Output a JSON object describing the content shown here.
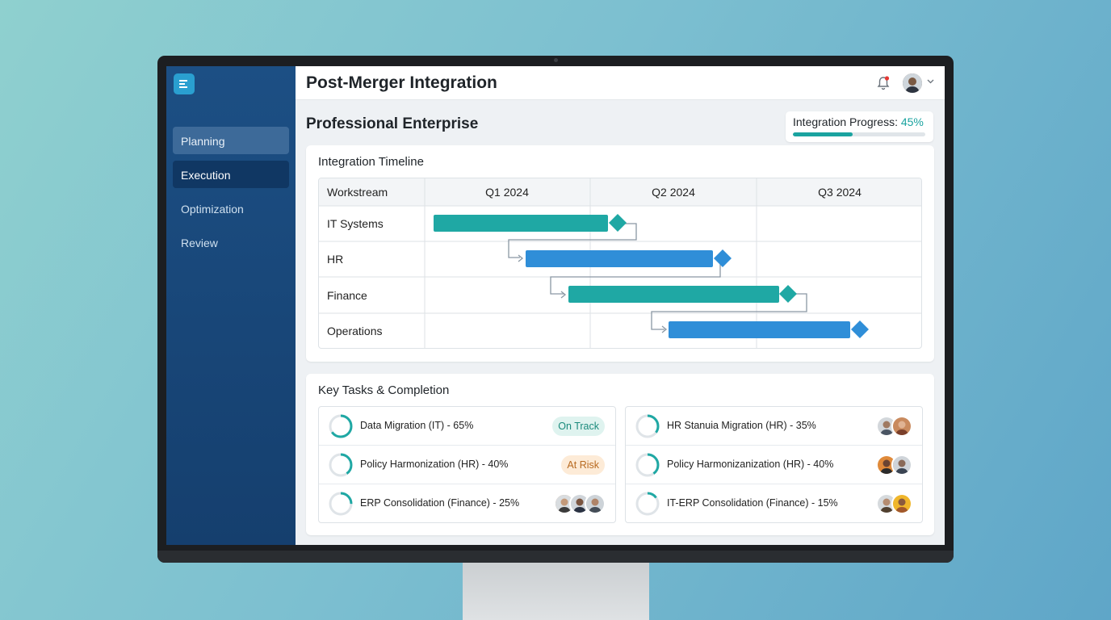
{
  "app": {
    "title": "Post-Merger Integration"
  },
  "sidebar": {
    "items": [
      {
        "label": "Planning"
      },
      {
        "label": "Execution"
      },
      {
        "label": "Optimization"
      },
      {
        "label": "Review"
      }
    ]
  },
  "header": {
    "company": "Professional Enterprise"
  },
  "progress": {
    "label": "Integration Progress:",
    "value": "45%",
    "fraction": 0.45
  },
  "timeline": {
    "title": "Integration Timeline",
    "header": [
      "Workstream",
      "Q1 2024",
      "Q2 2024",
      "Q3 2024"
    ],
    "rows": [
      "IT Systems",
      "HR",
      "Finance",
      "Operations"
    ]
  },
  "tasks": {
    "title": "Key Tasks & Completion",
    "left": [
      {
        "label": "Data Migration (IT) - 65%",
        "progress": 0.65,
        "badge": "On Track"
      },
      {
        "label": "Policy Harmonization (HR) - 40%",
        "progress": 0.4,
        "badge": "At Risk"
      },
      {
        "label": "ERP Consolidation (Finance) - 25%",
        "progress": 0.25
      }
    ],
    "right": [
      {
        "label": "HR Stanuia Migration (HR) - 35%",
        "progress": 0.35
      },
      {
        "label": "Policy Harmonizanization (HR) - 40%",
        "progress": 0.4
      },
      {
        "label": "IT-ERP Consolidation (Finance) - 15%",
        "progress": 0.15
      }
    ]
  },
  "colors": {
    "teal": "#1fa8a4",
    "blue": "#2f8ed8",
    "navy": "#1c4f84"
  }
}
